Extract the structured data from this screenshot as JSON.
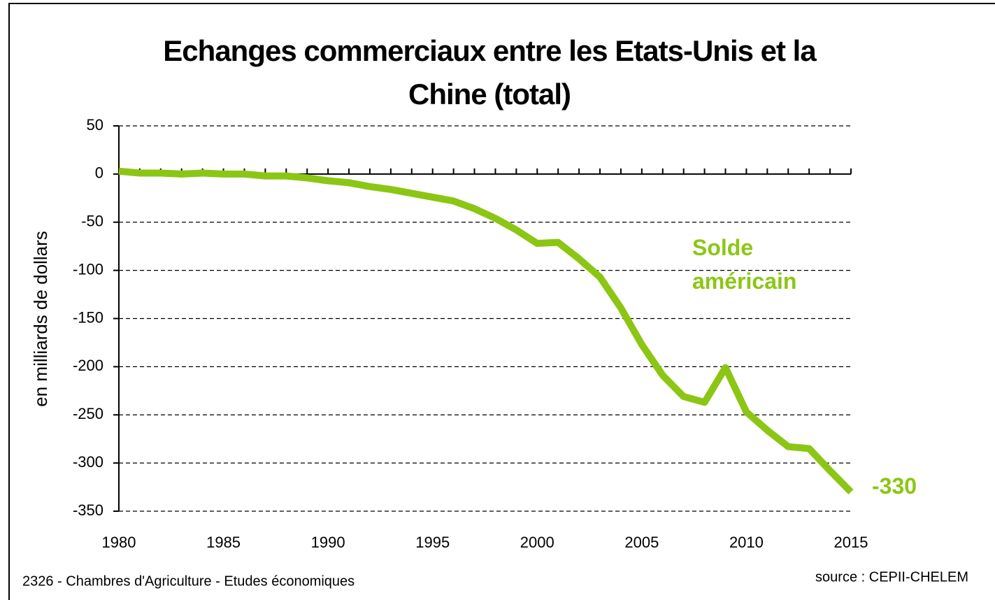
{
  "chart_data": {
    "type": "line",
    "title": "Echanges commerciaux entre les Etats-Unis et la Chine (total)",
    "y_label": "en milliards de dollars",
    "footer": "2326 - Chambres d'Agriculture - Etudes économiques",
    "source": "source : CEPII-CHELEM",
    "x": [
      1980,
      1981,
      1982,
      1983,
      1984,
      1985,
      1986,
      1987,
      1988,
      1989,
      1990,
      1991,
      1992,
      1993,
      1994,
      1995,
      1996,
      1997,
      1998,
      1999,
      2000,
      2001,
      2002,
      2003,
      2004,
      2005,
      2006,
      2007,
      2008,
      2009,
      2010,
      2011,
      2012,
      2013,
      2014,
      2015
    ],
    "series": [
      {
        "name": "Solde américain",
        "color": "#8cc614",
        "values": [
          3,
          1,
          1,
          0,
          1,
          0,
          0,
          -2,
          -2,
          -4,
          -7,
          -9,
          -13,
          -16,
          -20,
          -24,
          -28,
          -36,
          -46,
          -58,
          -72,
          -71,
          -88,
          -107,
          -139,
          -177,
          -209,
          -231,
          -237,
          -201,
          -247,
          -266,
          -283,
          -285,
          -308,
          -330
        ]
      }
    ],
    "xlim": [
      1980,
      2015
    ],
    "xticks": [
      1980,
      1985,
      1990,
      1995,
      2000,
      2005,
      2010,
      2015
    ],
    "ylim": [
      -350,
      50
    ],
    "yticks": [
      -350,
      -300,
      -250,
      -200,
      -150,
      -100,
      -50,
      0,
      50
    ],
    "grid": true
  }
}
